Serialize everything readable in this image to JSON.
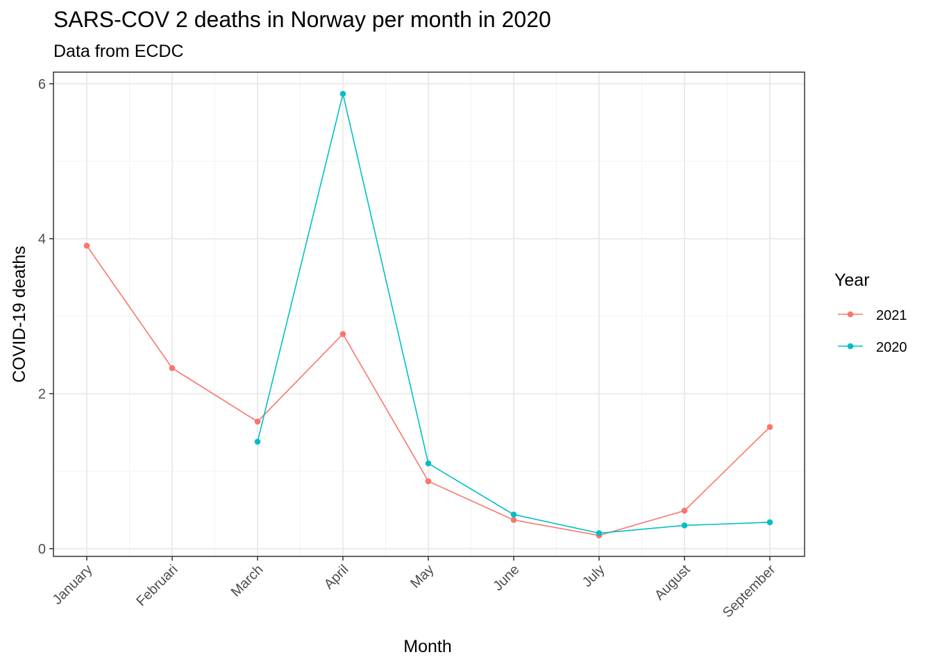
{
  "chart_data": {
    "type": "line",
    "title": "SARS-COV 2 deaths in Norway per month in 2020",
    "subtitle": "Data from ECDC",
    "xlabel": "Month",
    "ylabel": "COVID-19 deaths",
    "categories": [
      "January",
      "Februari",
      "March",
      "April",
      "May",
      "June",
      "July",
      "August",
      "September"
    ],
    "ylim": [
      -0.1,
      6.15
    ],
    "yticks": [
      0,
      2,
      4,
      6
    ],
    "grid": true,
    "legend": {
      "title": "Year",
      "placement": "right"
    },
    "series": [
      {
        "name": "2021",
        "color": "#F8766D",
        "values": [
          3.91,
          2.33,
          1.64,
          2.77,
          0.87,
          0.37,
          0.17,
          0.49,
          1.57
        ]
      },
      {
        "name": "2020",
        "color": "#00BFC4",
        "values": [
          null,
          null,
          1.38,
          5.87,
          1.1,
          0.44,
          0.2,
          0.3,
          0.34
        ]
      }
    ]
  }
}
